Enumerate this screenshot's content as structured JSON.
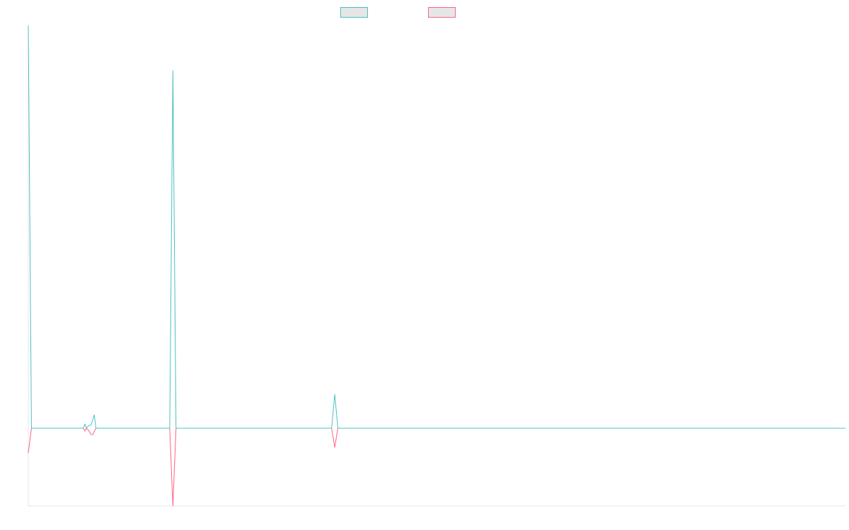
{
  "chart_data": {
    "type": "line",
    "title": "",
    "xlabel": "",
    "ylabel": "",
    "grid": false,
    "legend_position": "top",
    "x_range": [
      0,
      520
    ],
    "ylim": [
      -1.1,
      5.7
    ],
    "series": [
      {
        "name": "",
        "color": "#4bc0c0",
        "fill": "#e6e6e6",
        "points": [
          [
            0,
            5.7
          ],
          [
            2,
            0
          ],
          [
            35,
            0
          ],
          [
            36,
            0.06
          ],
          [
            37,
            0
          ],
          [
            38,
            0.03
          ],
          [
            40,
            0.05
          ],
          [
            42,
            0.19
          ],
          [
            43,
            0
          ],
          [
            90,
            0
          ],
          [
            92,
            5.06
          ],
          [
            94,
            0
          ],
          [
            193,
            0
          ],
          [
            195,
            0.48
          ],
          [
            197,
            0
          ],
          [
            520,
            0
          ]
        ]
      },
      {
        "name": "",
        "color": "#ff6384",
        "fill": "#e6e6e6",
        "points": [
          [
            0,
            -0.35
          ],
          [
            2,
            0
          ],
          [
            35,
            0
          ],
          [
            36,
            -0.04
          ],
          [
            37,
            0
          ],
          [
            38,
            -0.02
          ],
          [
            40,
            -0.09
          ],
          [
            41,
            -0.09
          ],
          [
            43,
            0
          ],
          [
            90,
            0
          ],
          [
            92,
            -1.1
          ],
          [
            94,
            0
          ],
          [
            193,
            0
          ],
          [
            195,
            -0.27
          ],
          [
            197,
            0
          ],
          [
            520,
            0
          ]
        ]
      }
    ]
  }
}
